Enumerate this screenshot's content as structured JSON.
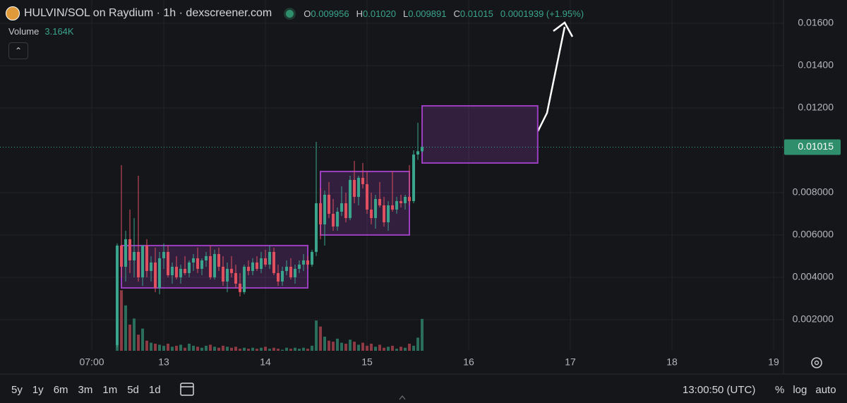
{
  "chart_data": {
    "type": "candlestick",
    "title": "HULVIN/SOL on Raydium · 1h · dexscreener.com",
    "ohlc_header": [
      {
        "key": "O",
        "label": "0.009956"
      },
      {
        "key": "H",
        "label": "0.01020"
      },
      {
        "key": "L",
        "label": "0.009891"
      },
      {
        "key": "C",
        "label": "0.01015"
      }
    ],
    "change_label": "0.0001939 (+1.95%)",
    "volume_name": "Volume",
    "volume_label": "3.164K",
    "up_color": "#3aa58c",
    "down_color": "#e0505f",
    "volume_up_color": "#2a6e5c",
    "volume_down_color": "#8e3a44",
    "box_color": "#9b3fc0",
    "grid": true,
    "xlim": [
      -14.67,
      170.33
    ],
    "xticks": [
      {
        "value": 7,
        "label": "07:00"
      },
      {
        "value": 24,
        "label": "13"
      },
      {
        "value": 48,
        "label": "14"
      },
      {
        "value": 72,
        "label": "15"
      },
      {
        "value": 96,
        "label": "16"
      },
      {
        "value": 120,
        "label": "17"
      },
      {
        "value": 144,
        "label": "18"
      },
      {
        "value": 168,
        "label": "19"
      }
    ],
    "ylim": [
      0.00053,
      0.0171
    ],
    "yticks": [
      {
        "value": 0.002,
        "label": "0.002000"
      },
      {
        "value": 0.004,
        "label": "0.004000"
      },
      {
        "value": 0.006,
        "label": "0.006000"
      },
      {
        "value": 0.008,
        "label": "0.008000"
      },
      {
        "value": 0.012,
        "label": "0.01200"
      },
      {
        "value": 0.014,
        "label": "0.01400"
      },
      {
        "value": 0.016,
        "label": "0.01600"
      }
    ],
    "last_price": {
      "value": 0.01015,
      "label": "0.01015"
    },
    "x": [
      13,
      14,
      15,
      16,
      17,
      18,
      19,
      20,
      21,
      22,
      23,
      24,
      25,
      26,
      27,
      28,
      29,
      30,
      31,
      32,
      33,
      34,
      35,
      36,
      37,
      38,
      39,
      40,
      41,
      42,
      43,
      44,
      45,
      46,
      47,
      48,
      49,
      50,
      51,
      52,
      53,
      54,
      55,
      56,
      57,
      58,
      59,
      60,
      61,
      62,
      63,
      64,
      65,
      66,
      67,
      68,
      69,
      70,
      71,
      72,
      73,
      74,
      75,
      76,
      77,
      78,
      79,
      80,
      81,
      82,
      83,
      84,
      85
    ],
    "open": [
      0.0008,
      0.0055,
      0.0045,
      0.0058,
      0.0048,
      0.0052,
      0.004,
      0.0055,
      0.0043,
      0.0047,
      0.0035,
      0.0049,
      0.0052,
      0.0041,
      0.0045,
      0.004,
      0.0044,
      0.0042,
      0.0047,
      0.0049,
      0.0044,
      0.0048,
      0.005,
      0.004,
      0.0051,
      0.0045,
      0.0038,
      0.0044,
      0.0042,
      0.0037,
      0.0033,
      0.0045,
      0.0043,
      0.0047,
      0.0044,
      0.0049,
      0.0046,
      0.0052,
      0.0042,
      0.0038,
      0.0043,
      0.0045,
      0.004,
      0.0044,
      0.0046,
      0.0048,
      0.0046,
      0.0052,
      0.0075,
      0.0065,
      0.0079,
      0.007,
      0.0064,
      0.0071,
      0.0075,
      0.0068,
      0.0086,
      0.0078,
      0.0087,
      0.0084,
      0.0072,
      0.0068,
      0.0077,
      0.0074,
      0.0066,
      0.0074,
      0.0072,
      0.0076,
      0.0075,
      0.0078,
      0.0076,
      0.0098,
      0.009956
    ],
    "high": [
      0.0056,
      0.0093,
      0.0062,
      0.0072,
      0.0068,
      0.0088,
      0.0055,
      0.0058,
      0.005,
      0.0054,
      0.0052,
      0.0056,
      0.0055,
      0.0047,
      0.005,
      0.0046,
      0.005,
      0.0048,
      0.0051,
      0.0054,
      0.0049,
      0.0052,
      0.0055,
      0.0053,
      0.0054,
      0.005,
      0.0047,
      0.005,
      0.0046,
      0.0042,
      0.0046,
      0.0048,
      0.0049,
      0.005,
      0.0052,
      0.0053,
      0.0055,
      0.0054,
      0.0046,
      0.0045,
      0.0048,
      0.0049,
      0.0046,
      0.0048,
      0.0051,
      0.005,
      0.0053,
      0.0104,
      0.0082,
      0.0081,
      0.0085,
      0.0077,
      0.0073,
      0.0083,
      0.008,
      0.0088,
      0.0095,
      0.0088,
      0.0094,
      0.009,
      0.008,
      0.0079,
      0.0085,
      0.0078,
      0.0076,
      0.009,
      0.0078,
      0.0079,
      0.0079,
      0.0093,
      0.01,
      0.0113,
      0.0102
    ],
    "low": [
      0.0007,
      0.004,
      0.0038,
      0.0042,
      0.004,
      0.0038,
      0.0036,
      0.004,
      0.0038,
      0.0033,
      0.0032,
      0.0044,
      0.004,
      0.0037,
      0.0039,
      0.0037,
      0.0041,
      0.004,
      0.0043,
      0.0042,
      0.0041,
      0.0045,
      0.0039,
      0.0039,
      0.0043,
      0.0036,
      0.0033,
      0.004,
      0.0035,
      0.0031,
      0.0032,
      0.0041,
      0.0041,
      0.0043,
      0.0042,
      0.0045,
      0.0044,
      0.0041,
      0.0036,
      0.0036,
      0.0041,
      0.0039,
      0.0037,
      0.0042,
      0.0043,
      0.0044,
      0.0045,
      0.005,
      0.0058,
      0.0055,
      0.0068,
      0.0062,
      0.0062,
      0.0069,
      0.0066,
      0.0067,
      0.0075,
      0.0074,
      0.0082,
      0.007,
      0.0065,
      0.0063,
      0.0073,
      0.0064,
      0.0062,
      0.0071,
      0.007,
      0.0073,
      0.0072,
      0.0074,
      0.0075,
      0.00955,
      0.009891
    ],
    "close": [
      0.0055,
      0.0045,
      0.0058,
      0.0048,
      0.0052,
      0.004,
      0.0055,
      0.0043,
      0.0047,
      0.0035,
      0.0049,
      0.0052,
      0.0041,
      0.0045,
      0.004,
      0.0044,
      0.0042,
      0.0047,
      0.0049,
      0.0044,
      0.0048,
      0.005,
      0.004,
      0.0051,
      0.0045,
      0.0038,
      0.0044,
      0.0042,
      0.0037,
      0.0033,
      0.0045,
      0.0043,
      0.0047,
      0.0044,
      0.0049,
      0.0046,
      0.0052,
      0.0042,
      0.0038,
      0.0043,
      0.0045,
      0.004,
      0.0044,
      0.0046,
      0.0048,
      0.0046,
      0.0052,
      0.0075,
      0.0065,
      0.0079,
      0.007,
      0.0064,
      0.0071,
      0.0075,
      0.0068,
      0.0086,
      0.0078,
      0.0087,
      0.0084,
      0.0072,
      0.0068,
      0.0077,
      0.0074,
      0.0066,
      0.0074,
      0.0072,
      0.0076,
      0.0075,
      0.0078,
      0.0076,
      0.0098,
      0.009956,
      0.01015
    ],
    "volume": [
      9800,
      6000,
      4500,
      2600,
      3200,
      1600,
      2200,
      1000,
      800,
      700,
      600,
      500,
      700,
      400,
      500,
      600,
      300,
      700,
      500,
      400,
      300,
      500,
      600,
      400,
      300,
      500,
      400,
      300,
      400,
      200,
      300,
      200,
      300,
      200,
      300,
      400,
      200,
      300,
      200,
      100,
      300,
      200,
      300,
      200,
      300,
      200,
      500,
      3000,
      2400,
      1400,
      1000,
      900,
      1200,
      800,
      700,
      1100,
      900,
      600,
      800,
      500,
      700,
      400,
      600,
      300,
      400,
      500,
      200,
      400,
      300,
      700,
      500,
      1300,
      3164
    ],
    "boxes": [
      {
        "x": [
          14,
          58
        ],
        "y": [
          0.0035,
          0.0055
        ]
      },
      {
        "x": [
          61,
          82
        ],
        "y": [
          0.006,
          0.009
        ]
      },
      {
        "x": [
          85,
          112.3
        ],
        "y": [
          0.0094,
          0.0121
        ]
      }
    ]
  },
  "toolbar": {
    "periods": [
      "5y",
      "1y",
      "6m",
      "3m",
      "1m",
      "5d",
      "1d"
    ],
    "clock": "13:00:50 (UTC)",
    "options": [
      "%",
      "log",
      "auto"
    ]
  }
}
